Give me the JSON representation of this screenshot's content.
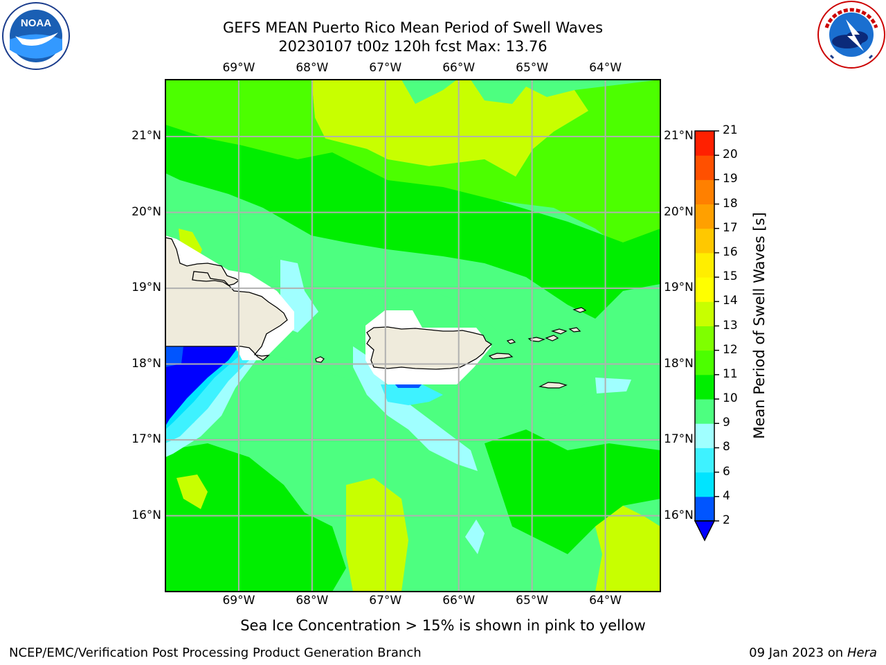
{
  "header": {
    "title_line1": "GEFS MEAN Puerto Rico Mean Period of Swell Waves",
    "title_line2": "20230107 t00z 120h fcst   Max: 13.76",
    "left_logo_text": "NOAA",
    "right_logo_text": "NATIONAL WEATHER SERVICE"
  },
  "map": {
    "lon_ticks": [
      "69°W",
      "68°W",
      "67°W",
      "66°W",
      "65°W",
      "64°W"
    ],
    "lat_ticks": [
      "21°N",
      "20°N",
      "19°N",
      "18°N",
      "17°N",
      "16°N"
    ],
    "lon_range": [
      -70.0,
      -63.25
    ],
    "lat_range": [
      15.0,
      21.75
    ],
    "ocean_color": "#4dff80",
    "land_color": "#efebdc"
  },
  "colorbar": {
    "label": "Mean Period of Swell Waves [s]",
    "levels": [
      "2",
      "4",
      "6",
      "8",
      "9",
      "10",
      "11",
      "12",
      "13",
      "14",
      "15",
      "16",
      "17",
      "18",
      "19",
      "20",
      "21"
    ],
    "colors": [
      "#0055ff",
      "#00e4ff",
      "#3ef2ff",
      "#a0ffff",
      "#4dff80",
      "#00ee00",
      "#4cff00",
      "#7fff00",
      "#c8ff00",
      "#ffff00",
      "#ffee00",
      "#ffc800",
      "#ffa000",
      "#ff8000",
      "#ff5000",
      "#ff2000"
    ],
    "under_color": "#0000ff"
  },
  "note": "Sea Ice Concentration > 15% is shown in pink to yellow",
  "footer": {
    "left": "NCEP/EMC/Verification Post Processing Product Generation Branch",
    "date": "09 Jan 2023 on ",
    "machine": "Hera"
  }
}
